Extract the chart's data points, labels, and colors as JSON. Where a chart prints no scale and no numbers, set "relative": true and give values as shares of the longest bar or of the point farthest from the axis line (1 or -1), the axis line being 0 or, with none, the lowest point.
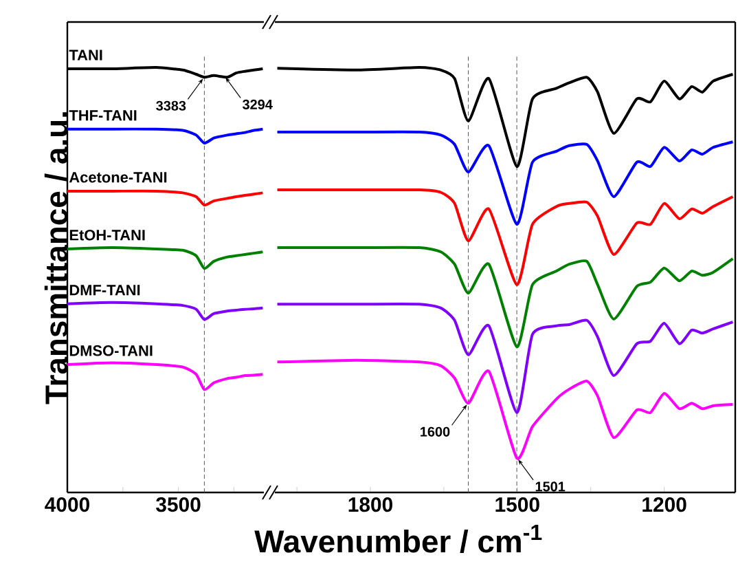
{
  "chart_data": [
    {
      "type": "line",
      "relative": true,
      "ylabel": "Transmittance / a.u.",
      "xlim": [
        4000,
        3115
      ],
      "xticks": [
        4000,
        {
          "value": 3750,
          "label": null
        },
        3500,
        {
          "value": 3250,
          "label": null
        }
      ],
      "x": [
        4000,
        3800,
        3600,
        3480,
        3420,
        3383,
        3340,
        3280,
        3240,
        3200,
        3160,
        3120
      ],
      "series": [
        {
          "name": "TANI",
          "color": "#000000",
          "values": [
            0.997,
            0.997,
            1.0,
            0.994,
            0.984,
            0.977,
            0.981,
            0.977,
            0.987,
            0.991,
            0.994,
            0.997
          ]
        },
        {
          "name": "THF-TANI",
          "color": "#0000ff",
          "values": [
            0.855,
            0.855,
            0.855,
            0.852,
            0.841,
            0.822,
            0.834,
            0.841,
            0.844,
            0.847,
            0.852,
            0.855
          ]
        },
        {
          "name": "Acetone-TANI",
          "color": "#ff0000",
          "values": [
            0.709,
            0.709,
            0.709,
            0.705,
            0.696,
            0.676,
            0.686,
            0.692,
            0.696,
            0.699,
            0.702,
            0.705
          ]
        },
        {
          "name": "EtOH-TANI",
          "color": "#008000",
          "values": [
            0.573,
            0.576,
            0.573,
            0.57,
            0.557,
            0.527,
            0.544,
            0.554,
            0.557,
            0.56,
            0.563,
            0.566
          ]
        },
        {
          "name": "DMF-TANI",
          "color": "#7f00ff",
          "values": [
            0.444,
            0.447,
            0.444,
            0.44,
            0.431,
            0.407,
            0.421,
            0.427,
            0.429,
            0.431,
            0.432,
            0.434
          ]
        },
        {
          "name": "DMSO-TANI",
          "color": "#ff00ff",
          "values": [
            0.301,
            0.305,
            0.301,
            0.295,
            0.278,
            0.242,
            0.258,
            0.268,
            0.271,
            0.275,
            0.276,
            0.278
          ]
        }
      ],
      "ref_lines": [
        {
          "axis": "x",
          "value": 3383,
          "color": "#555555",
          "line_style": "dashed"
        }
      ],
      "annotations": [
        {
          "text": "3383",
          "x": 3383,
          "y": 0.977
        },
        {
          "text": "3294",
          "x": 3294,
          "y": 0.98
        }
      ]
    },
    {
      "type": "line",
      "relative": true,
      "xlabel": "Wavenumber / cm$^{-1}$",
      "xlim": [
        1995,
        1055
      ],
      "xticks": [
        {
          "value": 1950,
          "label": null
        },
        1800,
        {
          "value": 1650,
          "label": null
        },
        1500,
        {
          "value": 1350,
          "label": null
        },
        1200
      ],
      "x": [
        1990,
        1830,
        1700,
        1656,
        1628,
        1600,
        1558,
        1501,
        1469,
        1420,
        1394,
        1358,
        1336,
        1303,
        1256,
        1228,
        1200,
        1169,
        1144,
        1122,
        1100,
        1060
      ],
      "series": [
        {
          "color": "#000000",
          "values": [
            0.998,
            0.994,
            1.0,
            0.994,
            0.974,
            0.874,
            0.974,
            0.767,
            0.926,
            0.951,
            0.964,
            0.977,
            0.942,
            0.845,
            0.926,
            0.919,
            0.968,
            0.926,
            0.955,
            0.942,
            0.968,
            0.984
          ]
        },
        {
          "color": "#0000ff",
          "values": [
            0.848,
            0.848,
            0.848,
            0.841,
            0.819,
            0.754,
            0.816,
            0.631,
            0.777,
            0.803,
            0.816,
            0.819,
            0.78,
            0.696,
            0.777,
            0.767,
            0.812,
            0.78,
            0.806,
            0.796,
            0.812,
            0.825
          ]
        },
        {
          "color": "#ff0000",
          "values": [
            0.712,
            0.712,
            0.712,
            0.706,
            0.68,
            0.592,
            0.667,
            0.489,
            0.631,
            0.673,
            0.68,
            0.683,
            0.65,
            0.56,
            0.634,
            0.631,
            0.68,
            0.644,
            0.667,
            0.657,
            0.673,
            0.696
          ]
        },
        {
          "color": "#008000",
          "values": [
            0.576,
            0.576,
            0.576,
            0.566,
            0.537,
            0.469,
            0.537,
            0.343,
            0.489,
            0.521,
            0.537,
            0.544,
            0.489,
            0.408,
            0.485,
            0.495,
            0.528,
            0.498,
            0.521,
            0.511,
            0.518,
            0.55
          ]
        },
        {
          "color": "#7f00ff",
          "values": [
            0.443,
            0.443,
            0.443,
            0.434,
            0.405,
            0.324,
            0.392,
            0.188,
            0.372,
            0.392,
            0.395,
            0.405,
            0.366,
            0.275,
            0.35,
            0.356,
            0.398,
            0.35,
            0.382,
            0.375,
            0.385,
            0.401
          ]
        },
        {
          "color": "#ff00ff",
          "values": [
            0.307,
            0.311,
            0.307,
            0.298,
            0.269,
            0.21,
            0.285,
            0.081,
            0.155,
            0.22,
            0.243,
            0.262,
            0.227,
            0.129,
            0.194,
            0.188,
            0.233,
            0.197,
            0.21,
            0.197,
            0.204,
            0.207
          ]
        }
      ],
      "ref_lines": [
        {
          "axis": "x",
          "value": 1600,
          "color": "#555555",
          "line_style": "dashed"
        },
        {
          "axis": "x",
          "value": 1501,
          "color": "#555555",
          "line_style": "dashed"
        }
      ],
      "annotations": [
        {
          "text": "1600",
          "x": 1600,
          "y": 0.21
        },
        {
          "text": "1501",
          "x": 1501,
          "y": 0.081
        }
      ]
    }
  ]
}
